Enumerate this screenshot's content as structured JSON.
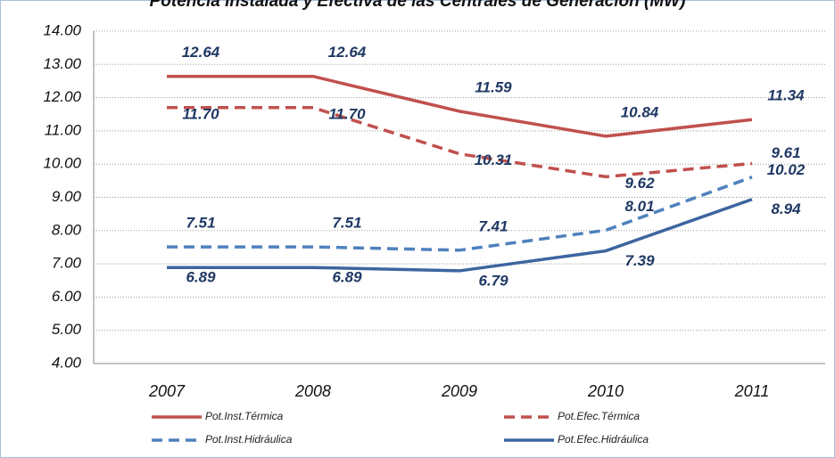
{
  "chart_data": {
    "type": "line",
    "title": "Potencia Instalada y Efectiva de las Centrales de Generación (MW)",
    "categories": [
      "2007",
      "2008",
      "2009",
      "2010",
      "2011"
    ],
    "ylim": [
      4,
      14
    ],
    "yticks": [
      {
        "value": 4,
        "label": "4.00"
      },
      {
        "value": 5,
        "label": "5.00"
      },
      {
        "value": 6,
        "label": "6.00"
      },
      {
        "value": 7,
        "label": "7.00"
      },
      {
        "value": 8,
        "label": "8.00"
      },
      {
        "value": 9,
        "label": "9.00"
      },
      {
        "value": 10,
        "label": "10.00"
      },
      {
        "value": 11,
        "label": "11.00"
      },
      {
        "value": 12,
        "label": "12.00"
      },
      {
        "value": 13,
        "label": "13.00"
      },
      {
        "value": 14,
        "label": "14.00"
      }
    ],
    "grid": true,
    "series": [
      {
        "name": "Pot.Inst.Térmica",
        "color": "#c0504d",
        "dash": false,
        "values": [
          12.64,
          12.64,
          11.59,
          10.84,
          11.34
        ],
        "value_labels": [
          "12.64",
          "12.64",
          "11.59",
          "10.84",
          "11.34"
        ]
      },
      {
        "name": "Pot.Efec.Térmica",
        "color": "#c0504d",
        "dash": true,
        "values": [
          11.7,
          11.7,
          10.31,
          9.62,
          10.02
        ],
        "value_labels": [
          "11.70",
          "11.70",
          "10.31",
          "9.62",
          "10.02"
        ]
      },
      {
        "name": "Pot.Inst.Hidráulica",
        "color": "#4f81bd",
        "dash": true,
        "values": [
          7.51,
          7.51,
          7.41,
          8.01,
          9.61
        ],
        "value_labels": [
          "7.51",
          "7.51",
          "7.41",
          "8.01",
          "9.61"
        ]
      },
      {
        "name": "Pot.Efec.Hidráulica",
        "color": "#3d659f",
        "dash": false,
        "values": [
          6.89,
          6.89,
          6.79,
          7.39,
          8.94
        ],
        "value_labels": [
          "6.89",
          "6.89",
          "6.79",
          "7.39",
          "8.94"
        ]
      }
    ]
  }
}
